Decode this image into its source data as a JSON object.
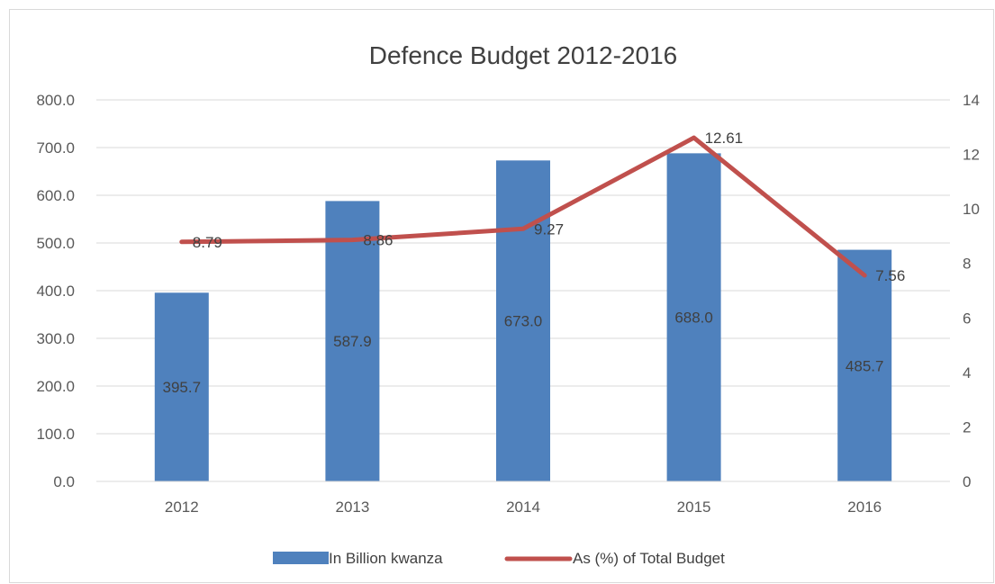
{
  "chart_data": {
    "type": "bar+line",
    "title": "Defence Budget 2012-2016",
    "categories": [
      "2012",
      "2013",
      "2014",
      "2015",
      "2016"
    ],
    "series": [
      {
        "name": "In Billion kwanza",
        "type": "bar",
        "axis": "left",
        "color": "#4f81bd",
        "values": [
          395.7,
          587.9,
          673.0,
          688.0,
          485.7
        ],
        "labels": [
          "395.7",
          "587.9",
          "673.0",
          "688.0",
          "485.7"
        ]
      },
      {
        "name": "As (%) of Total Budget",
        "type": "line",
        "axis": "right",
        "color": "#c0504d",
        "values": [
          8.79,
          8.86,
          9.27,
          12.61,
          7.56
        ],
        "labels": [
          "8.79",
          "8.86",
          "9.27",
          "12.61",
          "7.56"
        ]
      }
    ],
    "y_left": {
      "min": 0,
      "max": 800,
      "ticks": [
        "0.0",
        "100.0",
        "200.0",
        "300.0",
        "400.0",
        "500.0",
        "600.0",
        "700.0",
        "800.0"
      ]
    },
    "y_right": {
      "min": 0,
      "max": 14,
      "ticks": [
        "0",
        "2",
        "4",
        "6",
        "8",
        "10",
        "12",
        "14"
      ]
    },
    "grid": true,
    "legend_position": "bottom"
  }
}
